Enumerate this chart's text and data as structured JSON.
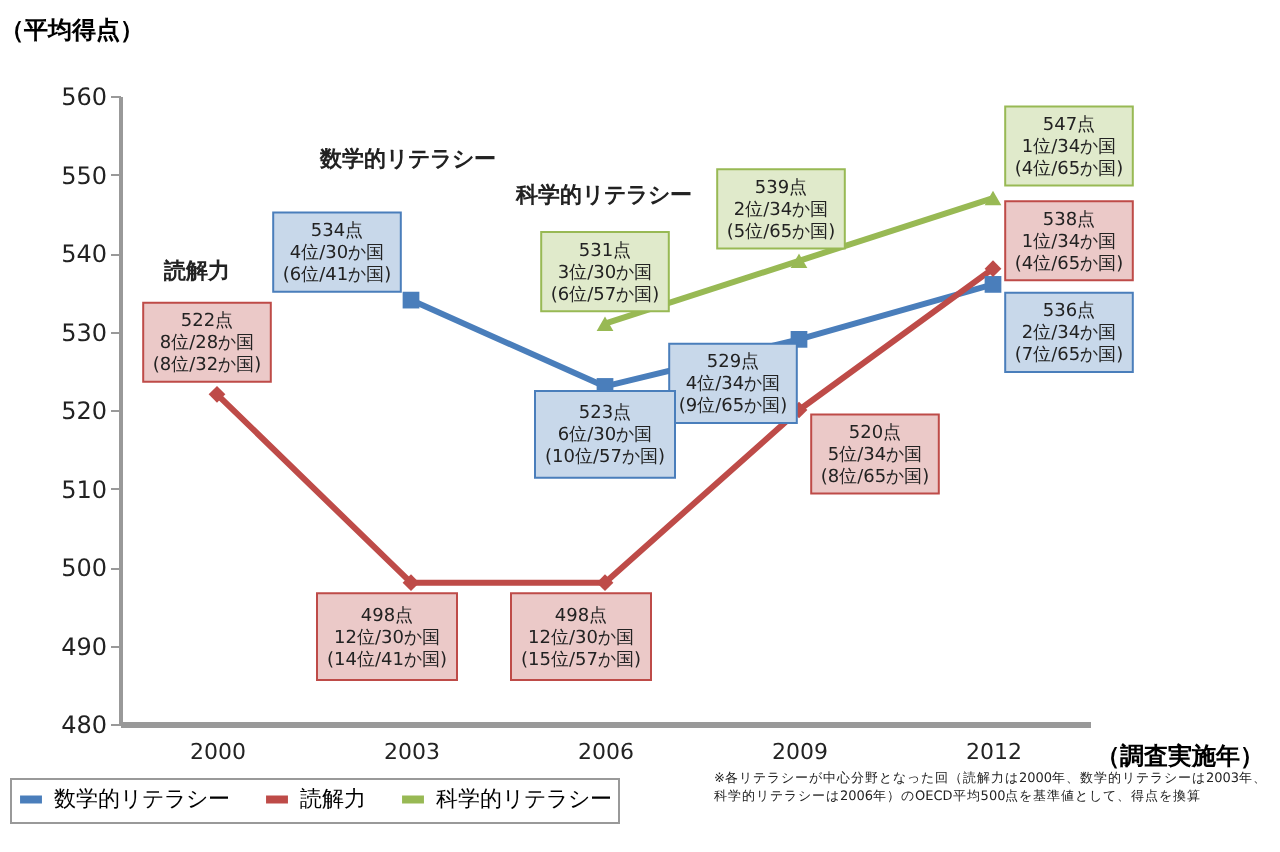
{
  "chart_data": {
    "type": "line",
    "xlabel": "（調査実施年）",
    "ylabel": "（平均得点）",
    "categories": [
      "2000",
      "2003",
      "2006",
      "2009",
      "2012"
    ],
    "series": [
      {
        "name": "数学的リテラシー",
        "color": "#4a7ebb",
        "marker": "square",
        "values": [
          null,
          534,
          523,
          529,
          536
        ]
      },
      {
        "name": "読解力",
        "color": "#be4b48",
        "marker": "diamond",
        "values": [
          522,
          498,
          498,
          520,
          538
        ]
      },
      {
        "name": "科学的リテラシー",
        "color": "#98b954",
        "marker": "triangle",
        "values": [
          null,
          null,
          531,
          539,
          547
        ]
      }
    ],
    "ylim": [
      480,
      560
    ],
    "yticks": [
      480,
      490,
      500,
      510,
      520,
      530,
      540,
      550,
      560
    ],
    "grid": false,
    "legend": "bottom",
    "line_style": "solid",
    "annotations": [
      "※各リテラシーが中心分野となった回（読解力は2000年、数学的リテラシーは2003年、科学的リテラシーは2006年）のOECD平均500点を基準値として、得点を換算",
      {
        "text": "522点\n8位/28か国\n(8位/32か国)",
        "x": "2000",
        "y": 522
      },
      {
        "text": "534点\n4位/30か国\n(6位/41か国)",
        "x": "2003",
        "y": 534
      },
      {
        "text": "531点\n3位/30か国\n(6位/57か国)",
        "x": "2006",
        "y": 531
      },
      {
        "text": "539点\n2位/34か国\n(5位/65か国)",
        "x": "2009",
        "y": 539
      },
      {
        "text": "547点\n1位/34か国\n(4位/65か国)",
        "x": "2012",
        "y": 547
      },
      {
        "text": "538点\n1位/34か国\n(4位/65か国)",
        "x": "2012",
        "y": 538
      },
      {
        "text": "536点\n2位/34か国\n(7位/65か国)",
        "x": "2012",
        "y": 536
      },
      {
        "text": "529点\n4位/34か国\n(9位/65か国)",
        "x": "2009",
        "y": 529
      },
      {
        "text": "523点\n6位/30か国\n(10位/57か国)",
        "x": "2006",
        "y": 523
      },
      {
        "text": "520点\n5位/34か国\n(8位/65か国)",
        "x": "2009",
        "y": 520
      },
      {
        "text": "498点\n12位/30か国\n(14位/41か国)",
        "x": "2003",
        "y": 498
      },
      {
        "text": "498点\n12位/30か国\n(15位/57か国)",
        "x": "2006",
        "y": 498
      }
    ]
  }
}
